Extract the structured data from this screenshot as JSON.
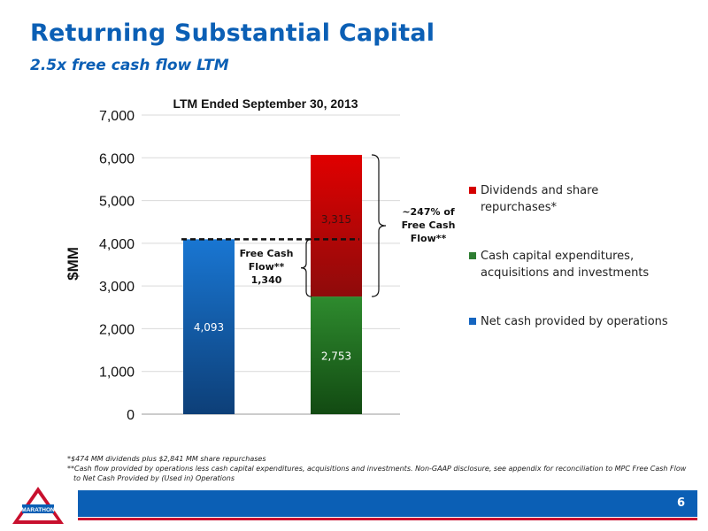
{
  "header": {
    "title": "Returning Substantial Capital",
    "subtitle": "2.5x free cash flow LTM"
  },
  "chart_data": {
    "type": "bar",
    "stacked": true,
    "title": "LTM Ended September 30, 2013",
    "ylabel": "$MM",
    "xlabel": "",
    "ylim": [
      0,
      7000
    ],
    "yticks": [
      "0",
      "1,000",
      "2,000",
      "3,000",
      "4,000",
      "5,000",
      "6,000",
      "7,000"
    ],
    "grid": true,
    "legend_position": "right",
    "series": [
      {
        "name": "Net cash provided by operations",
        "values": [
          4093,
          0
        ],
        "color": "#1565c0",
        "labels": [
          "4,093",
          ""
        ]
      },
      {
        "name": "Cash capital expenditures, acquisitions and investments",
        "values": [
          0,
          2753
        ],
        "color": "#2e7d32",
        "labels": [
          "",
          "2,753"
        ]
      },
      {
        "name": "Dividends and share repurchases*",
        "values": [
          0,
          3315
        ],
        "color": "#d50000",
        "labels": [
          "",
          "3,315"
        ]
      }
    ],
    "annotations": {
      "free_cash_flow": {
        "text_lines": [
          "Free Cash",
          "Flow**",
          "1,340"
        ],
        "value": 1340
      },
      "percent_of_fcf": {
        "text_lines": [
          "~247% of",
          "Free Cash",
          "Flow**"
        ]
      }
    }
  },
  "footnotes": [
    "*$474 MM dividends plus $2,841 MM share repurchases",
    "**Cash flow provided by operations less cash capital expenditures, acquisitions and investments.  Non-GAAP disclosure, see appendix for reconciliation to MPC Free Cash Flow",
    "to Net Cash Provided by (Used in) Operations"
  ],
  "footer": {
    "page_number": "6",
    "logo_text": "MARATHON"
  },
  "colors": {
    "brand_blue": "#0b5fb5",
    "brand_red": "#c8102e"
  }
}
